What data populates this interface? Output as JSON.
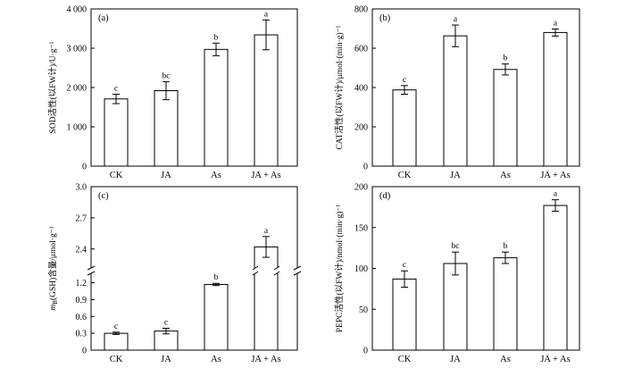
{
  "chart_data": [
    {
      "type": "bar",
      "panel": "(a)",
      "categories": [
        "CK",
        "JA",
        "As",
        "JA + As"
      ],
      "values": [
        1710,
        1920,
        2970,
        3340
      ],
      "errors": [
        120,
        230,
        160,
        380
      ],
      "significance": [
        "c",
        "bc",
        "b",
        "a"
      ],
      "ylabel": "SOD活性(以FW计)/U·g⁻¹",
      "ylim": [
        0,
        4000
      ],
      "yticks": [
        0,
        1000,
        2000,
        3000,
        4000
      ],
      "ytick_labels": [
        "0",
        "1 000",
        "2 000",
        "3 000",
        "4 000"
      ],
      "grid": false
    },
    {
      "type": "bar",
      "panel": "(b)",
      "categories": [
        "CK",
        "JA",
        "As",
        "JA + As"
      ],
      "values": [
        388,
        663,
        492,
        680
      ],
      "errors": [
        22,
        55,
        28,
        18
      ],
      "significance": [
        "c",
        "a",
        "b",
        "a"
      ],
      "ylabel": "CAT活性(以FW计)/μmol·(min·g)⁻¹",
      "ylim": [
        0,
        800
      ],
      "yticks": [
        0,
        200,
        400,
        600,
        800
      ],
      "ytick_labels": [
        "0",
        "200",
        "400",
        "600",
        "800"
      ],
      "grid": false
    },
    {
      "type": "bar",
      "panel": "(c)",
      "categories": [
        "CK",
        "JA",
        "As",
        "JA + As"
      ],
      "values": [
        0.3,
        0.34,
        1.17,
        2.42
      ],
      "errors": [
        0.02,
        0.05,
        0.02,
        0.1
      ],
      "significance": [
        "c",
        "c",
        "b",
        "a"
      ],
      "ylabel": "m_B(GSH)含量/μmol·g⁻¹",
      "ylabel_main": "m",
      "ylabel_sub": "B",
      "ylabel_rest": "(GSH)含量/μmol·g⁻¹",
      "axis_break": true,
      "lower_ylim": [
        0,
        1.4
      ],
      "upper_ylim": [
        2.2,
        3.0
      ],
      "yticks": [
        0,
        0.3,
        0.6,
        0.9,
        1.2,
        2.4,
        2.7,
        3.0
      ],
      "ytick_labels": [
        "0",
        "0.3",
        "0.6",
        "0.9",
        "1.2",
        "2.4",
        "2.7",
        "3.0"
      ],
      "grid": false
    },
    {
      "type": "bar",
      "panel": "(d)",
      "categories": [
        "CK",
        "JA",
        "As",
        "JA + As"
      ],
      "values": [
        87,
        106,
        113,
        177
      ],
      "errors": [
        10,
        14,
        7,
        7
      ],
      "significance": [
        "c",
        "bc",
        "b",
        "a"
      ],
      "ylabel": "PEPC活性(以FW计)/nmol·(min·g)⁻¹",
      "ylim": [
        0,
        200
      ],
      "yticks": [
        0,
        50,
        100,
        150,
        200
      ],
      "ytick_labels": [
        "0",
        "50",
        "100",
        "150",
        "200"
      ],
      "grid": false
    }
  ]
}
